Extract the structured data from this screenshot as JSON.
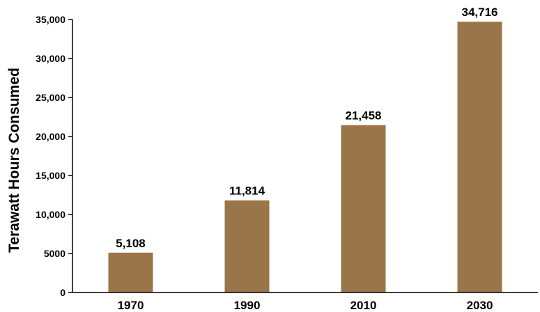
{
  "chart_data": {
    "type": "bar",
    "categories": [
      "1970",
      "1990",
      "2010",
      "2030"
    ],
    "values": [
      5108,
      11814,
      21458,
      34716
    ],
    "data_labels": [
      "5,108",
      "11,814",
      "21,458",
      "34,716"
    ],
    "title": "",
    "xlabel": "",
    "ylabel": "Terawatt Hours Consumed",
    "ylim": [
      0,
      35000
    ],
    "yticks": [
      0,
      5000,
      10000,
      15000,
      20000,
      25000,
      30000,
      35000
    ],
    "ytick_labels": [
      "0",
      "5000",
      "10,000",
      "15,000",
      "20,000",
      "25,000",
      "30,000",
      "35,000"
    ],
    "grid": false,
    "legend": "none",
    "bar_color": "#9A754A",
    "axis_color": "#000000"
  }
}
